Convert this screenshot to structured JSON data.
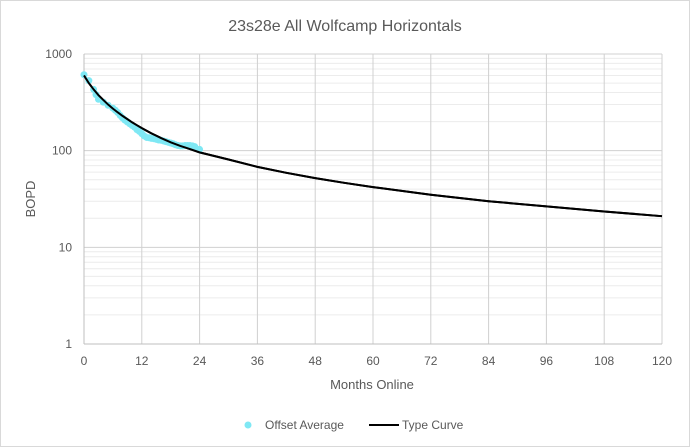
{
  "chart_data": {
    "type": "scatter",
    "title": "23s28e All Wolfcamp Horizontals",
    "xlabel": "Months Online",
    "ylabel": "BOPD",
    "x_scale": "linear",
    "y_scale": "log",
    "xlim": [
      0,
      120
    ],
    "ylim": [
      1,
      1000
    ],
    "x_ticks": [
      "0",
      "12",
      "24",
      "36",
      "48",
      "60",
      "72",
      "84",
      "96",
      "108",
      "120"
    ],
    "y_ticks": [
      "1",
      "10",
      "100",
      "1000"
    ],
    "grid": true,
    "legend_position": "bottom",
    "series": [
      {
        "name": "Offset Average",
        "kind": "scatter",
        "color": "#7fe8f4",
        "points": [
          [
            0,
            610
          ],
          [
            1,
            530
          ],
          [
            2,
            430
          ],
          [
            2.5,
            380
          ],
          [
            3,
            340
          ],
          [
            4,
            318
          ],
          [
            5,
            295
          ],
          [
            6,
            275
          ],
          [
            6.5,
            262
          ],
          [
            7,
            248
          ],
          [
            7.5,
            232
          ],
          [
            8,
            218
          ],
          [
            8.5,
            207
          ],
          [
            9,
            198
          ],
          [
            9.5,
            190
          ],
          [
            10,
            182
          ],
          [
            10.5,
            175
          ],
          [
            11,
            165
          ],
          [
            11.5,
            158
          ],
          [
            12,
            150
          ],
          [
            12.5,
            142
          ],
          [
            13,
            137
          ],
          [
            13.5,
            136
          ],
          [
            14,
            134
          ],
          [
            14.5,
            133
          ],
          [
            15,
            131
          ],
          [
            15.5,
            129
          ],
          [
            16,
            128
          ],
          [
            16.5,
            126
          ],
          [
            17,
            124
          ],
          [
            17.5,
            122
          ],
          [
            18,
            120
          ],
          [
            18.5,
            118
          ],
          [
            19,
            115
          ],
          [
            19.5,
            113
          ],
          [
            20,
            112
          ],
          [
            20.5,
            112
          ],
          [
            21,
            113
          ],
          [
            21.5,
            113
          ],
          [
            22,
            113
          ],
          [
            22.5,
            112
          ],
          [
            23,
            110
          ],
          [
            24,
            103
          ]
        ]
      },
      {
        "name": "Type Curve",
        "kind": "line",
        "color": "#000000",
        "points": [
          [
            0,
            600
          ],
          [
            1,
            500
          ],
          [
            2,
            430
          ],
          [
            3,
            375
          ],
          [
            4,
            335
          ],
          [
            5,
            300
          ],
          [
            6,
            272
          ],
          [
            7,
            249
          ],
          [
            8,
            229
          ],
          [
            9,
            212
          ],
          [
            10,
            196
          ],
          [
            11,
            183
          ],
          [
            12,
            171
          ],
          [
            14,
            151
          ],
          [
            16,
            135
          ],
          [
            18,
            122
          ],
          [
            20,
            112
          ],
          [
            22,
            104
          ],
          [
            24,
            96
          ],
          [
            30,
            81
          ],
          [
            36,
            68
          ],
          [
            42,
            59
          ],
          [
            48,
            52
          ],
          [
            54,
            46.5
          ],
          [
            60,
            42
          ],
          [
            72,
            35
          ],
          [
            84,
            30
          ],
          [
            96,
            26.5
          ],
          [
            108,
            23.5
          ],
          [
            120,
            21
          ]
        ]
      }
    ]
  }
}
